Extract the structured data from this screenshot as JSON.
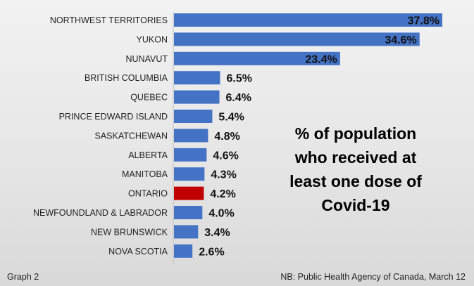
{
  "chart_data": {
    "type": "bar",
    "orientation": "horizontal",
    "categories": [
      "NORTHWEST TERRITORIES",
      "YUKON",
      "NUNAVUT",
      "BRITISH COLUMBIA",
      "QUEBEC",
      "PRINCE EDWARD ISLAND",
      "SASKATCHEWAN",
      "ALBERTA",
      "MANITOBA",
      "ONTARIO",
      "NEWFOUNDLAND & LABRADOR",
      "NEW BRUNSWICK",
      "NOVA SCOTIA"
    ],
    "values": [
      37.8,
      34.6,
      23.4,
      6.5,
      6.4,
      5.4,
      4.8,
      4.6,
      4.3,
      4.2,
      4.0,
      3.4,
      2.6
    ],
    "value_labels": [
      "37.8%",
      "34.6%",
      "23.4%",
      "6.5%",
      "6.4%",
      "5.4%",
      "4.8%",
      "4.6%",
      "4.3%",
      "4.2%",
      "4.0%",
      "3.4%",
      "2.6%"
    ],
    "title_lines": [
      "% of population",
      "who received at",
      "least one dose of",
      "Covid-19"
    ],
    "xlim": [
      0,
      40
    ],
    "grid": false,
    "colors": {
      "bar": "#4472c4",
      "highlight": "#c00000",
      "highlight_category": "ONTARIO"
    }
  },
  "footer": {
    "left": "Graph 2",
    "right": "NB: Public Health Agency of Canada, March 12"
  }
}
